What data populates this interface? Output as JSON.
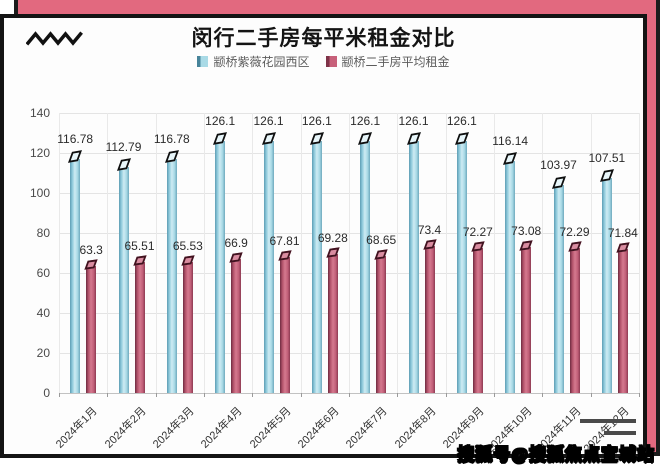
{
  "frame": {
    "watermark_text": "搜狐号@搜狐焦点宜城站",
    "backdrop_color": "#e2697f"
  },
  "chart_data": {
    "type": "bar",
    "title": "闵行二手房每平米租金对比",
    "categories": [
      "2024年1月",
      "2024年2月",
      "2024年3月",
      "2024年4月",
      "2024年5月",
      "2024年6月",
      "2024年7月",
      "2024年8月",
      "2024年9月",
      "2024年10月",
      "2024年11月",
      "2024年12月"
    ],
    "series": [
      {
        "name": "颛桥紫薇花园西区",
        "color": "#a9dae6",
        "edge_color": "#47849a",
        "values": [
          116.78,
          112.79,
          116.78,
          126.1,
          126.1,
          126.1,
          126.1,
          126.1,
          126.1,
          116.14,
          103.97,
          107.51
        ]
      },
      {
        "name": "颛桥二手房平均租金",
        "color": "#c7607a",
        "edge_color": "#7e3348",
        "values": [
          63.3,
          65.51,
          65.53,
          66.9,
          67.81,
          69.28,
          68.65,
          73.4,
          72.27,
          73.08,
          72.29,
          71.84
        ]
      }
    ],
    "xlabel": "",
    "ylabel": "",
    "ylim": [
      0,
      140
    ],
    "ytick_step": 20,
    "grid": true,
    "legend_position": "top",
    "value_labels": true,
    "x_tick_rotation": 45
  }
}
